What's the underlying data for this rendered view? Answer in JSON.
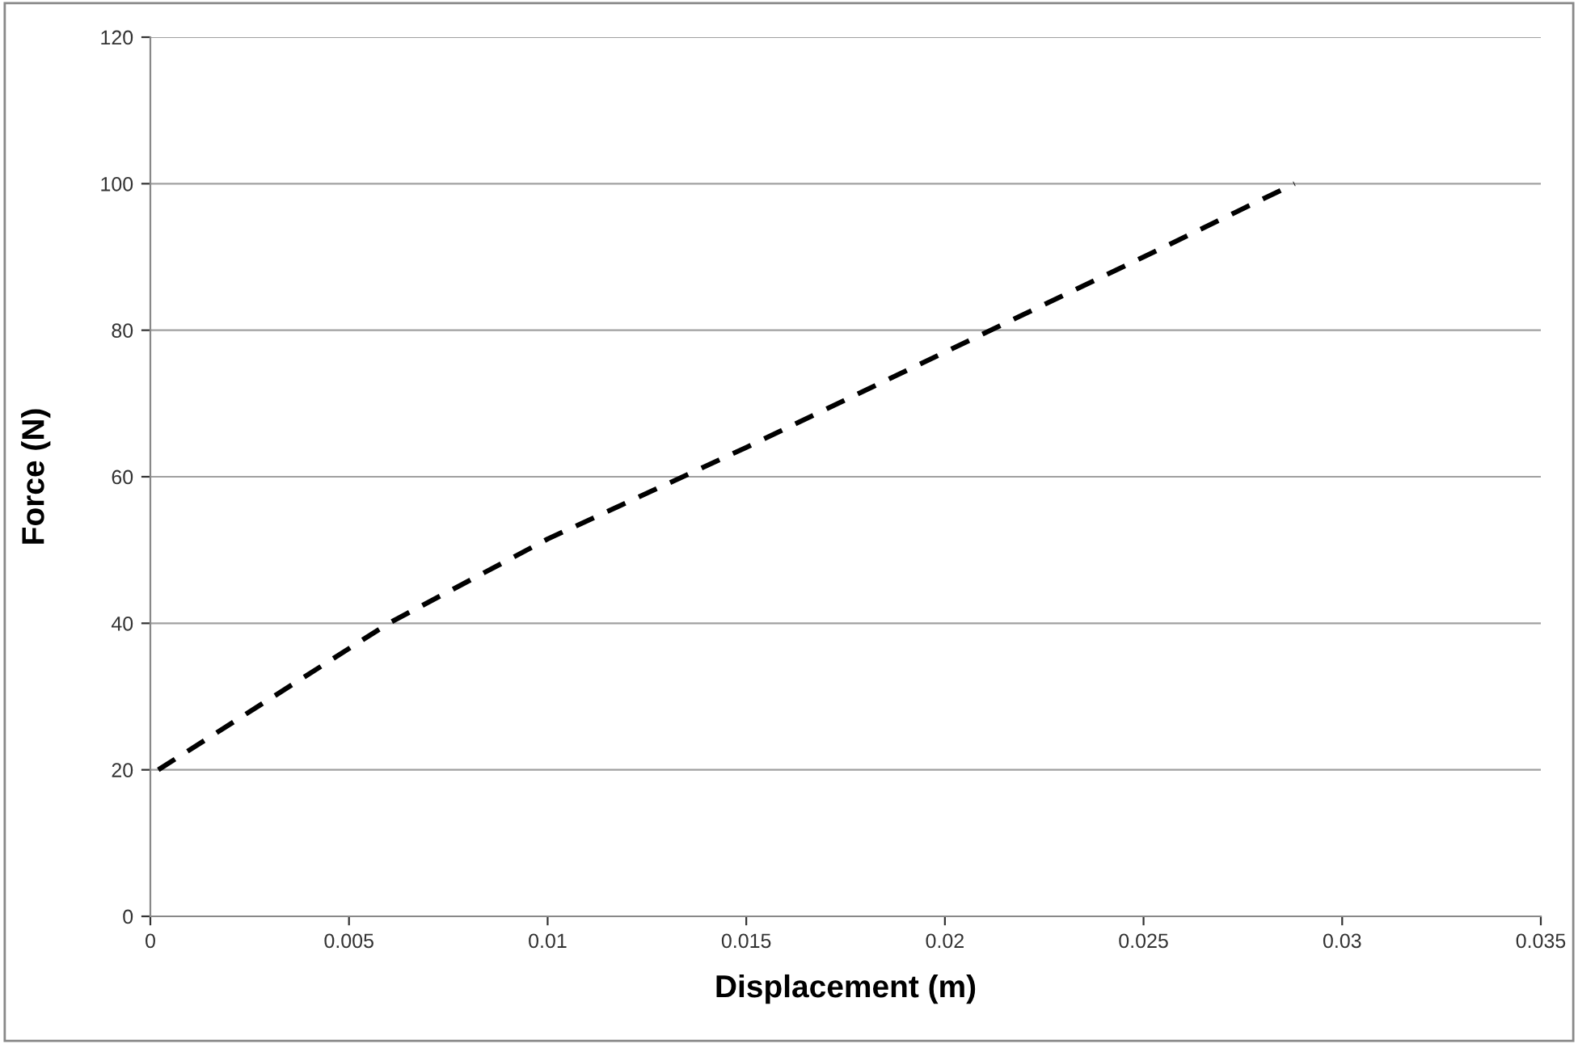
{
  "chart_data": {
    "type": "line",
    "xlabel": "Displacement (m)",
    "ylabel": "Force (N)",
    "x": [
      0.0002,
      0.006,
      0.01,
      0.015,
      0.02,
      0.025,
      0.0288
    ],
    "series": [
      {
        "color": "#000000",
        "values": [
          20,
          40,
          51.5,
          64,
          77,
          90,
          100
        ]
      }
    ],
    "xlim": [
      0,
      0.035
    ],
    "xticks": [
      0,
      0.005,
      0.01,
      0.015,
      0.02,
      0.025,
      0.03,
      0.035
    ],
    "ylim": [
      0,
      120
    ],
    "yticks": [
      0,
      20,
      40,
      60,
      80,
      100,
      120
    ],
    "grid": "y",
    "line_style": "dashed",
    "marker": "none"
  }
}
